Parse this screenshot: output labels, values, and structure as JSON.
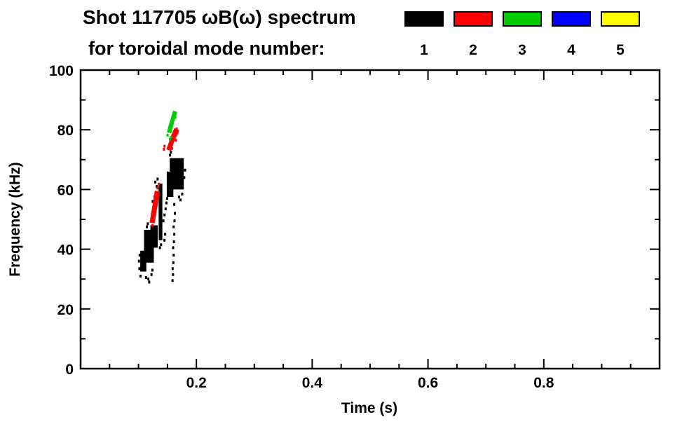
{
  "title": {
    "line1": "Shot 117705 ωB(ω) spectrum",
    "line2": "for toroidal mode number:"
  },
  "legend": {
    "entries": [
      {
        "label": "1",
        "color": "#000000"
      },
      {
        "label": "2",
        "color": "#ff0000"
      },
      {
        "label": "3",
        "color": "#00cc00"
      },
      {
        "label": "4",
        "color": "#0000ff"
      },
      {
        "label": "5",
        "color": "#ffff00"
      }
    ]
  },
  "chart_data": {
    "type": "scatter",
    "title": "Shot 117705 ωB(ω) spectrum for toroidal mode number:",
    "xlabel": "Time (s)",
    "ylabel": "Frequency (kHz)",
    "xlim": [
      0,
      1.0
    ],
    "ylim": [
      0,
      100
    ],
    "grid": false,
    "legend_position": "top-right",
    "x_ticks": {
      "major": [
        {
          "v": 0.2,
          "label": "0.2"
        },
        {
          "v": 0.4,
          "label": "0.4"
        },
        {
          "v": 0.6,
          "label": "0.6"
        },
        {
          "v": 0.8,
          "label": "0.8"
        }
      ],
      "minor_step": 0.05
    },
    "y_ticks": {
      "major": [
        {
          "v": 0,
          "label": "0"
        },
        {
          "v": 20,
          "label": "20"
        },
        {
          "v": 40,
          "label": "40"
        },
        {
          "v": 60,
          "label": "60"
        },
        {
          "v": 80,
          "label": "80"
        },
        {
          "v": 100,
          "label": "100"
        }
      ],
      "minor_step": 10
    },
    "series": [
      {
        "name": "1",
        "mode_number": 1,
        "color": "#000000",
        "boxes": [
          {
            "t": [
              0.103,
              0.1135
            ],
            "f": [
              32.5,
              39.5
            ]
          },
          {
            "t": [
              0.1095,
              0.1265
            ],
            "f": [
              35.5,
              46.5
            ]
          },
          {
            "t": [
              0.1205,
              0.1332
            ],
            "f": [
              40.5,
              48.0
            ]
          },
          {
            "t": [
              0.1348,
              0.1412
            ],
            "f": [
              43.0,
              62.0
            ]
          },
          {
            "t": [
              0.1488,
              0.1602
            ],
            "f": [
              57.5,
              66.0
            ]
          },
          {
            "t": [
              0.154,
              0.1782
            ],
            "f": [
              60.0,
              70.5
            ]
          }
        ],
        "bands": [],
        "points": [
          [
            0.1015,
            33.5
          ],
          [
            0.1008,
            36.0
          ],
          [
            0.102,
            38.0
          ],
          [
            0.1035,
            31.0
          ],
          [
            0.113,
            30.5
          ],
          [
            0.1145,
            47.5
          ],
          [
            0.116,
            48.5
          ],
          [
            0.117,
            30.0
          ],
          [
            0.1185,
            29.0
          ],
          [
            0.1225,
            31.5
          ],
          [
            0.124,
            33.0
          ],
          [
            0.125,
            52.0
          ],
          [
            0.1262,
            54.0
          ],
          [
            0.1245,
            56.0
          ],
          [
            0.1278,
            57.5
          ],
          [
            0.13,
            59.0
          ],
          [
            0.1315,
            61.0
          ],
          [
            0.129,
            62.5
          ],
          [
            0.133,
            63.5
          ],
          [
            0.137,
            40.5
          ],
          [
            0.139,
            41.5
          ],
          [
            0.143,
            49.5
          ],
          [
            0.145,
            51.5
          ],
          [
            0.1468,
            53.5
          ],
          [
            0.1482,
            55.5
          ],
          [
            0.1495,
            57.0
          ],
          [
            0.146,
            45.0
          ],
          [
            0.1448,
            43.0
          ],
          [
            0.1588,
            29.5
          ],
          [
            0.1596,
            31.5
          ],
          [
            0.159,
            33.5
          ],
          [
            0.1602,
            35.5
          ],
          [
            0.1608,
            38.0
          ],
          [
            0.1598,
            40.5
          ],
          [
            0.1612,
            42.5
          ],
          [
            0.1618,
            45.0
          ],
          [
            0.1607,
            47.5
          ],
          [
            0.1622,
            49.5
          ],
          [
            0.1628,
            52.0
          ],
          [
            0.1618,
            55.0
          ],
          [
            0.1545,
            71.5
          ],
          [
            0.156,
            72.5
          ],
          [
            0.1575,
            73.8
          ],
          [
            0.155,
            74.6
          ],
          [
            0.17,
            57.5
          ],
          [
            0.1725,
            56.5
          ],
          [
            0.1755,
            58.5
          ],
          [
            0.179,
            64.0
          ],
          [
            0.1805,
            66.5
          ]
        ]
      },
      {
        "name": "2",
        "mode_number": 2,
        "color": "#ff0000",
        "boxes": [],
        "bands": [
          {
            "t": [
              0.1235,
              0.1325
            ],
            "f": [
              48.8,
              59.5
            ],
            "w": 1.7
          },
          {
            "t": [
              0.152,
              0.16
            ],
            "f": [
              73.2,
              77.5
            ],
            "w": 1.6
          },
          {
            "t": [
              0.16,
              0.1662
            ],
            "f": [
              77.5,
              80.2
            ],
            "w": 1.8
          }
        ],
        "points": [
          [
            0.145,
            74.5
          ],
          [
            0.1437,
            73.5
          ],
          [
            0.133,
            60.5
          ],
          [
            0.1352,
            61.8
          ],
          [
            0.166,
            80.3
          ],
          [
            0.1672,
            79.0
          ],
          [
            0.1242,
            48.0
          ],
          [
            0.1645,
            76.5
          ]
        ]
      },
      {
        "name": "3",
        "mode_number": 3,
        "color": "#00cc00",
        "boxes": [],
        "bands": [
          {
            "t": [
              0.1528,
              0.1575
            ],
            "f": [
              79.0,
              82.5
            ],
            "w": 1.5
          },
          {
            "t": [
              0.1575,
              0.1632
            ],
            "f": [
              82.5,
              86.2
            ],
            "w": 1.4
          }
        ],
        "points": [
          [
            0.1502,
            78.2
          ],
          [
            0.1558,
            77.4
          ],
          [
            0.1543,
            76.8
          ],
          [
            0.1636,
            84.2
          ],
          [
            0.1642,
            85.5
          ]
        ]
      },
      {
        "name": "4",
        "mode_number": 4,
        "color": "#0000ff",
        "boxes": [],
        "bands": [],
        "points": []
      },
      {
        "name": "5",
        "mode_number": 5,
        "color": "#ffff00",
        "boxes": [],
        "bands": [],
        "points": []
      }
    ]
  }
}
